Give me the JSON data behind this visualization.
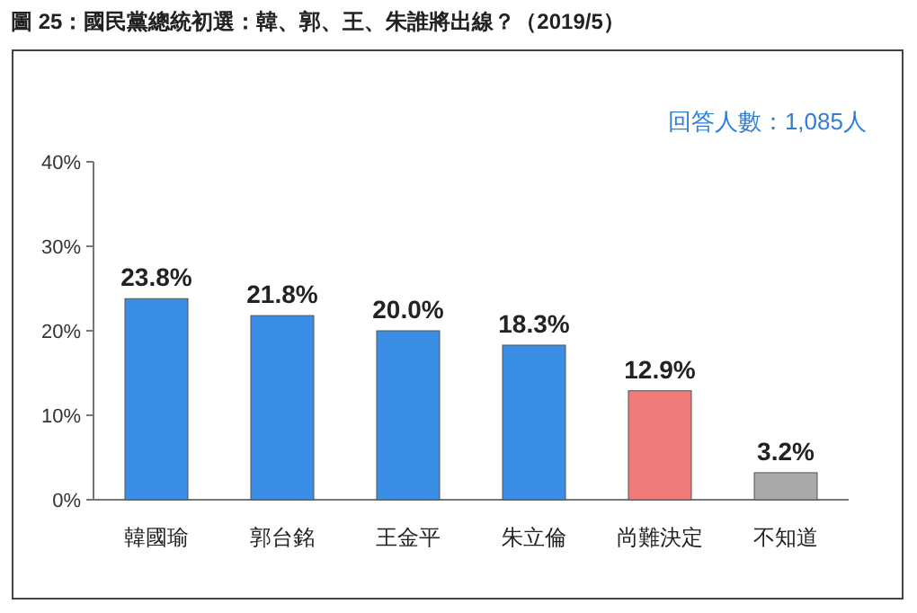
{
  "chart_data": {
    "type": "bar",
    "title": "圖 25：國民黨總統初選：韓、郭、王、朱誰將出線？（2019/5）",
    "annotations": [
      "回答人數：1,085人"
    ],
    "categories": [
      "韓國瑜",
      "郭台銘",
      "王金平",
      "朱立倫",
      "尚難決定",
      "不知道"
    ],
    "values": [
      23.8,
      21.8,
      20.0,
      18.3,
      12.9,
      3.2
    ],
    "colors": [
      "#3a8ee6",
      "#3a8ee6",
      "#3a8ee6",
      "#3a8ee6",
      "#ef7b7b",
      "#a9a9a9"
    ],
    "value_labels": [
      "23.8%",
      "21.8%",
      "20.0%",
      "18.3%",
      "12.9%",
      "3.2%"
    ],
    "ylim": [
      0,
      40
    ],
    "yticks": [
      {
        "value": 0,
        "label": "0%"
      },
      {
        "value": 10,
        "label": "10%"
      },
      {
        "value": 20,
        "label": "20%"
      },
      {
        "value": 30,
        "label": "30%"
      },
      {
        "value": 40,
        "label": "40%"
      }
    ],
    "grid": false
  }
}
